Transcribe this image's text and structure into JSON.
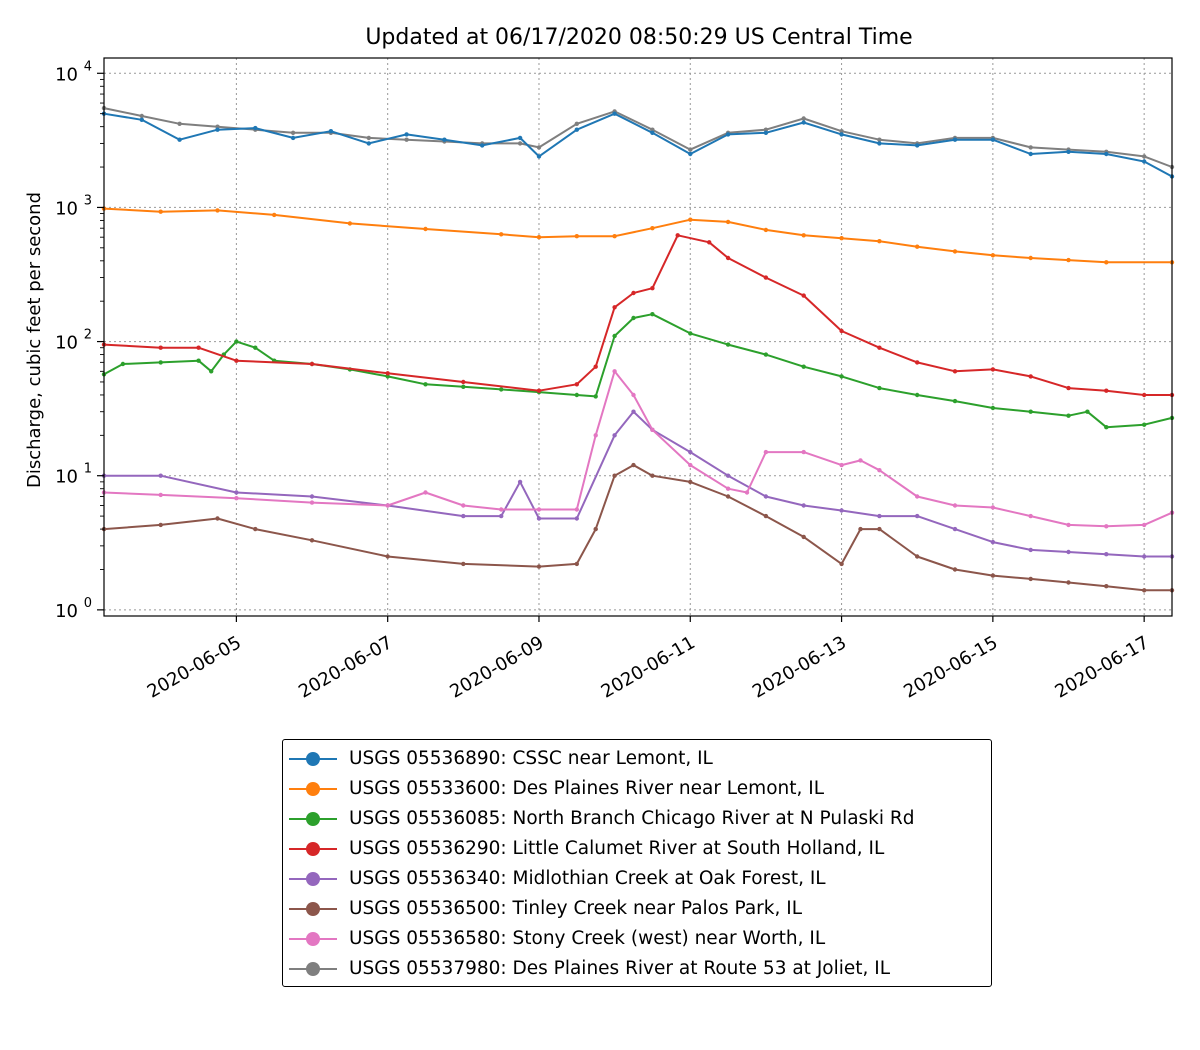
{
  "chart_data": {
    "type": "line",
    "title": "Updated at 06/17/2020 08:50:29 US Central Time",
    "xlabel": "",
    "ylabel": "Discharge, cubic feet per second",
    "yscale": "log",
    "xlim": [
      "2020-06-03 06:00",
      "2020-06-17 08:50"
    ],
    "ylim": [
      0.9,
      13000
    ],
    "grid": true,
    "legend_position": "below",
    "x_ticks": [
      "2020-06-05",
      "2020-06-07",
      "2020-06-09",
      "2020-06-11",
      "2020-06-13",
      "2020-06-15",
      "2020-06-17"
    ],
    "y_ticks": [
      {
        "value": 1,
        "base": "10",
        "exp": "0"
      },
      {
        "value": 10,
        "base": "10",
        "exp": "1"
      },
      {
        "value": 100,
        "base": "10",
        "exp": "2"
      },
      {
        "value": 1000,
        "base": "10",
        "exp": "3"
      },
      {
        "value": 10000,
        "base": "10",
        "exp": "4"
      }
    ],
    "series": [
      {
        "name": "USGS 05536890: CSSC near Lemont, IL",
        "color": "#1f77b4",
        "points": [
          [
            "2020-06-03 06:00",
            5000
          ],
          [
            "2020-06-03 18:00",
            4500
          ],
          [
            "2020-06-04 06:00",
            3200
          ],
          [
            "2020-06-04 18:00",
            3800
          ],
          [
            "2020-06-05 06:00",
            3900
          ],
          [
            "2020-06-05 18:00",
            3300
          ],
          [
            "2020-06-06 06:00",
            3700
          ],
          [
            "2020-06-06 18:00",
            3000
          ],
          [
            "2020-06-07 06:00",
            3500
          ],
          [
            "2020-06-07 18:00",
            3200
          ],
          [
            "2020-06-08 06:00",
            2900
          ],
          [
            "2020-06-08 18:00",
            3300
          ],
          [
            "2020-06-09 00:00",
            2400
          ],
          [
            "2020-06-09 12:00",
            3800
          ],
          [
            "2020-06-10 00:00",
            5000
          ],
          [
            "2020-06-10 12:00",
            3600
          ],
          [
            "2020-06-11 00:00",
            2500
          ],
          [
            "2020-06-11 12:00",
            3500
          ],
          [
            "2020-06-12 00:00",
            3600
          ],
          [
            "2020-06-12 12:00",
            4300
          ],
          [
            "2020-06-13 00:00",
            3500
          ],
          [
            "2020-06-13 12:00",
            3000
          ],
          [
            "2020-06-14 00:00",
            2900
          ],
          [
            "2020-06-14 12:00",
            3200
          ],
          [
            "2020-06-15 00:00",
            3200
          ],
          [
            "2020-06-15 12:00",
            2500
          ],
          [
            "2020-06-16 00:00",
            2600
          ],
          [
            "2020-06-16 12:00",
            2500
          ],
          [
            "2020-06-17 00:00",
            2200
          ],
          [
            "2020-06-17 08:50",
            1700
          ]
        ]
      },
      {
        "name": "USGS 05533600: Des Plaines River near Lemont, IL",
        "color": "#ff7f0e",
        "points": [
          [
            "2020-06-03 06:00",
            980
          ],
          [
            "2020-06-04 00:00",
            930
          ],
          [
            "2020-06-04 18:00",
            950
          ],
          [
            "2020-06-05 12:00",
            880
          ],
          [
            "2020-06-06 12:00",
            760
          ],
          [
            "2020-06-07 12:00",
            690
          ],
          [
            "2020-06-08 12:00",
            630
          ],
          [
            "2020-06-09 00:00",
            600
          ],
          [
            "2020-06-09 12:00",
            610
          ],
          [
            "2020-06-10 00:00",
            610
          ],
          [
            "2020-06-10 12:00",
            700
          ],
          [
            "2020-06-11 00:00",
            810
          ],
          [
            "2020-06-11 12:00",
            780
          ],
          [
            "2020-06-12 00:00",
            680
          ],
          [
            "2020-06-12 12:00",
            620
          ],
          [
            "2020-06-13 00:00",
            590
          ],
          [
            "2020-06-13 12:00",
            560
          ],
          [
            "2020-06-14 00:00",
            510
          ],
          [
            "2020-06-14 12:00",
            470
          ],
          [
            "2020-06-15 00:00",
            440
          ],
          [
            "2020-06-15 12:00",
            420
          ],
          [
            "2020-06-16 00:00",
            405
          ],
          [
            "2020-06-16 12:00",
            390
          ],
          [
            "2020-06-17 08:50",
            390
          ]
        ]
      },
      {
        "name": "USGS 05536085: North Branch Chicago River at N Pulaski Rd",
        "color": "#2ca02c",
        "points": [
          [
            "2020-06-03 06:00",
            57
          ],
          [
            "2020-06-03 12:00",
            68
          ],
          [
            "2020-06-04 00:00",
            70
          ],
          [
            "2020-06-04 12:00",
            72
          ],
          [
            "2020-06-04 16:00",
            60
          ],
          [
            "2020-06-04 20:00",
            80
          ],
          [
            "2020-06-05 00:00",
            100
          ],
          [
            "2020-06-05 06:00",
            90
          ],
          [
            "2020-06-05 12:00",
            72
          ],
          [
            "2020-06-06 00:00",
            68
          ],
          [
            "2020-06-06 12:00",
            62
          ],
          [
            "2020-06-07 00:00",
            55
          ],
          [
            "2020-06-07 12:00",
            48
          ],
          [
            "2020-06-08 00:00",
            46
          ],
          [
            "2020-06-08 12:00",
            44
          ],
          [
            "2020-06-09 00:00",
            42
          ],
          [
            "2020-06-09 12:00",
            40
          ],
          [
            "2020-06-09 18:00",
            39
          ],
          [
            "2020-06-10 00:00",
            110
          ],
          [
            "2020-06-10 06:00",
            150
          ],
          [
            "2020-06-10 12:00",
            160
          ],
          [
            "2020-06-11 00:00",
            115
          ],
          [
            "2020-06-11 12:00",
            95
          ],
          [
            "2020-06-12 00:00",
            80
          ],
          [
            "2020-06-12 12:00",
            65
          ],
          [
            "2020-06-13 00:00",
            55
          ],
          [
            "2020-06-13 12:00",
            45
          ],
          [
            "2020-06-14 00:00",
            40
          ],
          [
            "2020-06-14 12:00",
            36
          ],
          [
            "2020-06-15 00:00",
            32
          ],
          [
            "2020-06-15 12:00",
            30
          ],
          [
            "2020-06-16 00:00",
            28
          ],
          [
            "2020-06-16 06:00",
            30
          ],
          [
            "2020-06-16 12:00",
            23
          ],
          [
            "2020-06-17 00:00",
            24
          ],
          [
            "2020-06-17 08:50",
            27
          ]
        ]
      },
      {
        "name": "USGS 05536290: Little Calumet River at South Holland, IL",
        "color": "#d62728",
        "points": [
          [
            "2020-06-03 06:00",
            95
          ],
          [
            "2020-06-04 00:00",
            90
          ],
          [
            "2020-06-04 12:00",
            90
          ],
          [
            "2020-06-05 00:00",
            72
          ],
          [
            "2020-06-06 00:00",
            68
          ],
          [
            "2020-06-07 00:00",
            58
          ],
          [
            "2020-06-08 00:00",
            50
          ],
          [
            "2020-06-09 00:00",
            43
          ],
          [
            "2020-06-09 12:00",
            48
          ],
          [
            "2020-06-09 18:00",
            65
          ],
          [
            "2020-06-10 00:00",
            180
          ],
          [
            "2020-06-10 06:00",
            230
          ],
          [
            "2020-06-10 12:00",
            250
          ],
          [
            "2020-06-10 20:00",
            620
          ],
          [
            "2020-06-11 06:00",
            550
          ],
          [
            "2020-06-11 12:00",
            420
          ],
          [
            "2020-06-12 00:00",
            300
          ],
          [
            "2020-06-12 12:00",
            220
          ],
          [
            "2020-06-13 00:00",
            120
          ],
          [
            "2020-06-13 12:00",
            90
          ],
          [
            "2020-06-14 00:00",
            70
          ],
          [
            "2020-06-14 12:00",
            60
          ],
          [
            "2020-06-15 00:00",
            62
          ],
          [
            "2020-06-15 12:00",
            55
          ],
          [
            "2020-06-16 00:00",
            45
          ],
          [
            "2020-06-16 12:00",
            43
          ],
          [
            "2020-06-17 00:00",
            40
          ],
          [
            "2020-06-17 08:50",
            40
          ]
        ]
      },
      {
        "name": "USGS 05536340: Midlothian Creek at Oak Forest, IL",
        "color": "#9467bd",
        "points": [
          [
            "2020-06-03 06:00",
            10
          ],
          [
            "2020-06-04 00:00",
            10
          ],
          [
            "2020-06-05 00:00",
            7.5
          ],
          [
            "2020-06-06 00:00",
            7
          ],
          [
            "2020-06-07 00:00",
            6
          ],
          [
            "2020-06-08 00:00",
            5
          ],
          [
            "2020-06-08 12:00",
            5
          ],
          [
            "2020-06-08 18:00",
            9
          ],
          [
            "2020-06-09 00:00",
            4.8
          ],
          [
            "2020-06-09 12:00",
            4.8
          ],
          [
            "2020-06-10 00:00",
            20
          ],
          [
            "2020-06-10 06:00",
            30
          ],
          [
            "2020-06-10 12:00",
            22
          ],
          [
            "2020-06-11 00:00",
            15
          ],
          [
            "2020-06-11 12:00",
            10
          ],
          [
            "2020-06-12 00:00",
            7
          ],
          [
            "2020-06-12 12:00",
            6
          ],
          [
            "2020-06-13 00:00",
            5.5
          ],
          [
            "2020-06-13 12:00",
            5
          ],
          [
            "2020-06-14 00:00",
            5
          ],
          [
            "2020-06-14 12:00",
            4
          ],
          [
            "2020-06-15 00:00",
            3.2
          ],
          [
            "2020-06-15 12:00",
            2.8
          ],
          [
            "2020-06-16 00:00",
            2.7
          ],
          [
            "2020-06-16 12:00",
            2.6
          ],
          [
            "2020-06-17 00:00",
            2.5
          ],
          [
            "2020-06-17 08:50",
            2.5
          ]
        ]
      },
      {
        "name": "USGS 05536500: Tinley Creek near Palos Park, IL",
        "color": "#8c564b",
        "points": [
          [
            "2020-06-03 06:00",
            4
          ],
          [
            "2020-06-04 00:00",
            4.3
          ],
          [
            "2020-06-04 18:00",
            4.8
          ],
          [
            "2020-06-05 06:00",
            4
          ],
          [
            "2020-06-06 00:00",
            3.3
          ],
          [
            "2020-06-07 00:00",
            2.5
          ],
          [
            "2020-06-08 00:00",
            2.2
          ],
          [
            "2020-06-09 00:00",
            2.1
          ],
          [
            "2020-06-09 12:00",
            2.2
          ],
          [
            "2020-06-09 18:00",
            4
          ],
          [
            "2020-06-10 00:00",
            10
          ],
          [
            "2020-06-10 06:00",
            12
          ],
          [
            "2020-06-10 12:00",
            10
          ],
          [
            "2020-06-11 00:00",
            9
          ],
          [
            "2020-06-11 12:00",
            7
          ],
          [
            "2020-06-12 00:00",
            5
          ],
          [
            "2020-06-12 12:00",
            3.5
          ],
          [
            "2020-06-13 00:00",
            2.2
          ],
          [
            "2020-06-13 06:00",
            4
          ],
          [
            "2020-06-13 12:00",
            4
          ],
          [
            "2020-06-14 00:00",
            2.5
          ],
          [
            "2020-06-14 12:00",
            2
          ],
          [
            "2020-06-15 00:00",
            1.8
          ],
          [
            "2020-06-15 12:00",
            1.7
          ],
          [
            "2020-06-16 00:00",
            1.6
          ],
          [
            "2020-06-16 12:00",
            1.5
          ],
          [
            "2020-06-17 00:00",
            1.4
          ],
          [
            "2020-06-17 08:50",
            1.4
          ]
        ]
      },
      {
        "name": "USGS 05536580: Stony Creek (west) near Worth, IL",
        "color": "#e377c2",
        "points": [
          [
            "2020-06-03 06:00",
            7.5
          ],
          [
            "2020-06-04 00:00",
            7.2
          ],
          [
            "2020-06-05 00:00",
            6.8
          ],
          [
            "2020-06-06 00:00",
            6.3
          ],
          [
            "2020-06-07 00:00",
            6
          ],
          [
            "2020-06-07 12:00",
            7.5
          ],
          [
            "2020-06-08 00:00",
            6
          ],
          [
            "2020-06-08 12:00",
            5.6
          ],
          [
            "2020-06-09 00:00",
            5.6
          ],
          [
            "2020-06-09 12:00",
            5.6
          ],
          [
            "2020-06-09 18:00",
            20
          ],
          [
            "2020-06-10 00:00",
            60
          ],
          [
            "2020-06-10 06:00",
            40
          ],
          [
            "2020-06-10 12:00",
            22
          ],
          [
            "2020-06-11 00:00",
            12
          ],
          [
            "2020-06-11 12:00",
            8
          ],
          [
            "2020-06-11 18:00",
            7.5
          ],
          [
            "2020-06-12 00:00",
            15
          ],
          [
            "2020-06-12 12:00",
            15
          ],
          [
            "2020-06-13 00:00",
            12
          ],
          [
            "2020-06-13 06:00",
            13
          ],
          [
            "2020-06-13 12:00",
            11
          ],
          [
            "2020-06-14 00:00",
            7
          ],
          [
            "2020-06-14 12:00",
            6
          ],
          [
            "2020-06-15 00:00",
            5.8
          ],
          [
            "2020-06-15 12:00",
            5
          ],
          [
            "2020-06-16 00:00",
            4.3
          ],
          [
            "2020-06-16 12:00",
            4.2
          ],
          [
            "2020-06-17 00:00",
            4.3
          ],
          [
            "2020-06-17 08:50",
            5.3
          ]
        ]
      },
      {
        "name": "USGS 05537980: Des Plaines River at Route 53 at Joliet, IL",
        "color": "#7f7f7f",
        "points": [
          [
            "2020-06-03 06:00",
            5500
          ],
          [
            "2020-06-03 18:00",
            4800
          ],
          [
            "2020-06-04 06:00",
            4200
          ],
          [
            "2020-06-04 18:00",
            4000
          ],
          [
            "2020-06-05 06:00",
            3800
          ],
          [
            "2020-06-05 18:00",
            3600
          ],
          [
            "2020-06-06 06:00",
            3600
          ],
          [
            "2020-06-06 18:00",
            3300
          ],
          [
            "2020-06-07 06:00",
            3200
          ],
          [
            "2020-06-07 18:00",
            3100
          ],
          [
            "2020-06-08 06:00",
            3000
          ],
          [
            "2020-06-08 18:00",
            3000
          ],
          [
            "2020-06-09 00:00",
            2800
          ],
          [
            "2020-06-09 12:00",
            4200
          ],
          [
            "2020-06-10 00:00",
            5200
          ],
          [
            "2020-06-10 12:00",
            3800
          ],
          [
            "2020-06-11 00:00",
            2700
          ],
          [
            "2020-06-11 12:00",
            3600
          ],
          [
            "2020-06-12 00:00",
            3800
          ],
          [
            "2020-06-12 12:00",
            4600
          ],
          [
            "2020-06-13 00:00",
            3700
          ],
          [
            "2020-06-13 12:00",
            3200
          ],
          [
            "2020-06-14 00:00",
            3000
          ],
          [
            "2020-06-14 12:00",
            3300
          ],
          [
            "2020-06-15 00:00",
            3300
          ],
          [
            "2020-06-15 12:00",
            2800
          ],
          [
            "2020-06-16 00:00",
            2700
          ],
          [
            "2020-06-16 12:00",
            2600
          ],
          [
            "2020-06-17 00:00",
            2400
          ],
          [
            "2020-06-17 08:50",
            2000
          ]
        ]
      }
    ]
  }
}
